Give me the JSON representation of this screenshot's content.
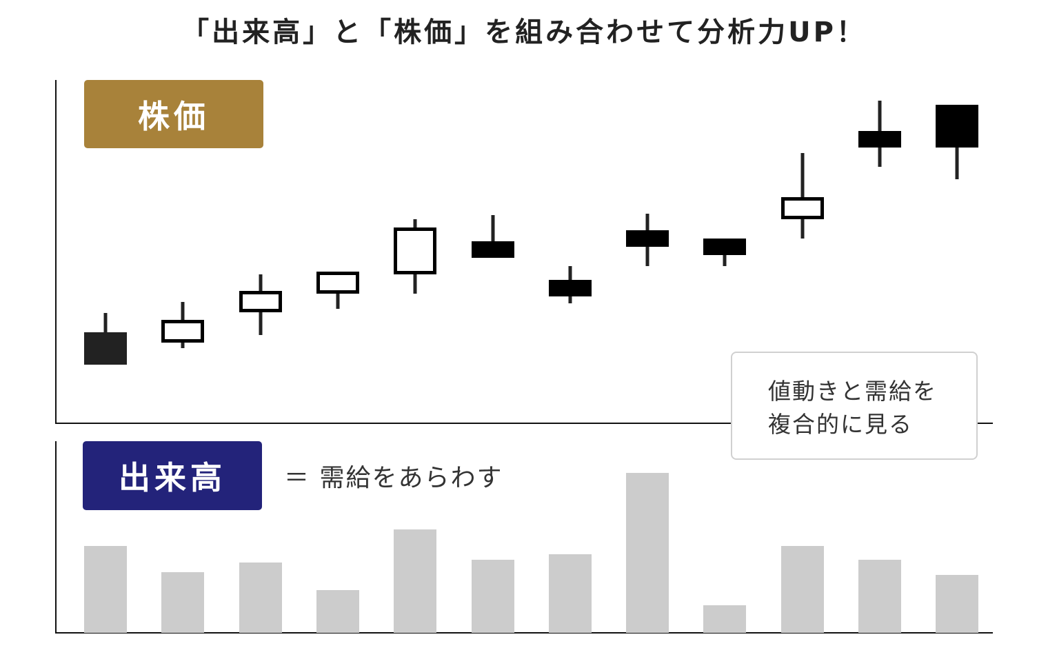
{
  "title": "「出来高」と「株価」を組み合わせて分析力UP！",
  "price_label": "株価",
  "volume_label": "出来高",
  "volume_note": "＝ 需給をあらわす",
  "callout": {
    "line1": "値動きと需給を",
    "line2": "複合的に見る"
  },
  "colors": {
    "price_label": "#a8823a",
    "volume_label": "#23237a",
    "candle": "#000000",
    "volume_bar": "#cccccc"
  },
  "chart_data": [
    {
      "type": "candlestick",
      "ylim": [
        0,
        498
      ],
      "grid": false,
      "candles": [
        {
          "open": 132,
          "high": 160,
          "low": 85,
          "close": 85
        },
        {
          "open": 117,
          "high": 176,
          "low": 109,
          "close": 150
        },
        {
          "open": 161,
          "high": 216,
          "low": 128,
          "close": 192
        },
        {
          "open": 188,
          "high": 220,
          "low": 166,
          "close": 220
        },
        {
          "open": 216,
          "high": 296,
          "low": 188,
          "close": 284
        },
        {
          "open": 264,
          "high": 302,
          "low": 240,
          "close": 240
        },
        {
          "open": 208,
          "high": 228,
          "low": 174,
          "close": 184
        },
        {
          "open": 280,
          "high": 304,
          "low": 228,
          "close": 256
        },
        {
          "open": 268,
          "high": 268,
          "low": 228,
          "close": 244
        },
        {
          "open": 296,
          "high": 392,
          "low": 268,
          "close": 328
        },
        {
          "open": 424,
          "high": 468,
          "low": 372,
          "close": 400
        },
        {
          "open": 462,
          "high": 462,
          "low": 354,
          "close": 400
        }
      ]
    },
    {
      "type": "bar",
      "ylim": [
        0,
        278
      ],
      "grid": false,
      "values": [
        126,
        88,
        102,
        62,
        150,
        106,
        114,
        232,
        40,
        126,
        106,
        84
      ]
    }
  ]
}
